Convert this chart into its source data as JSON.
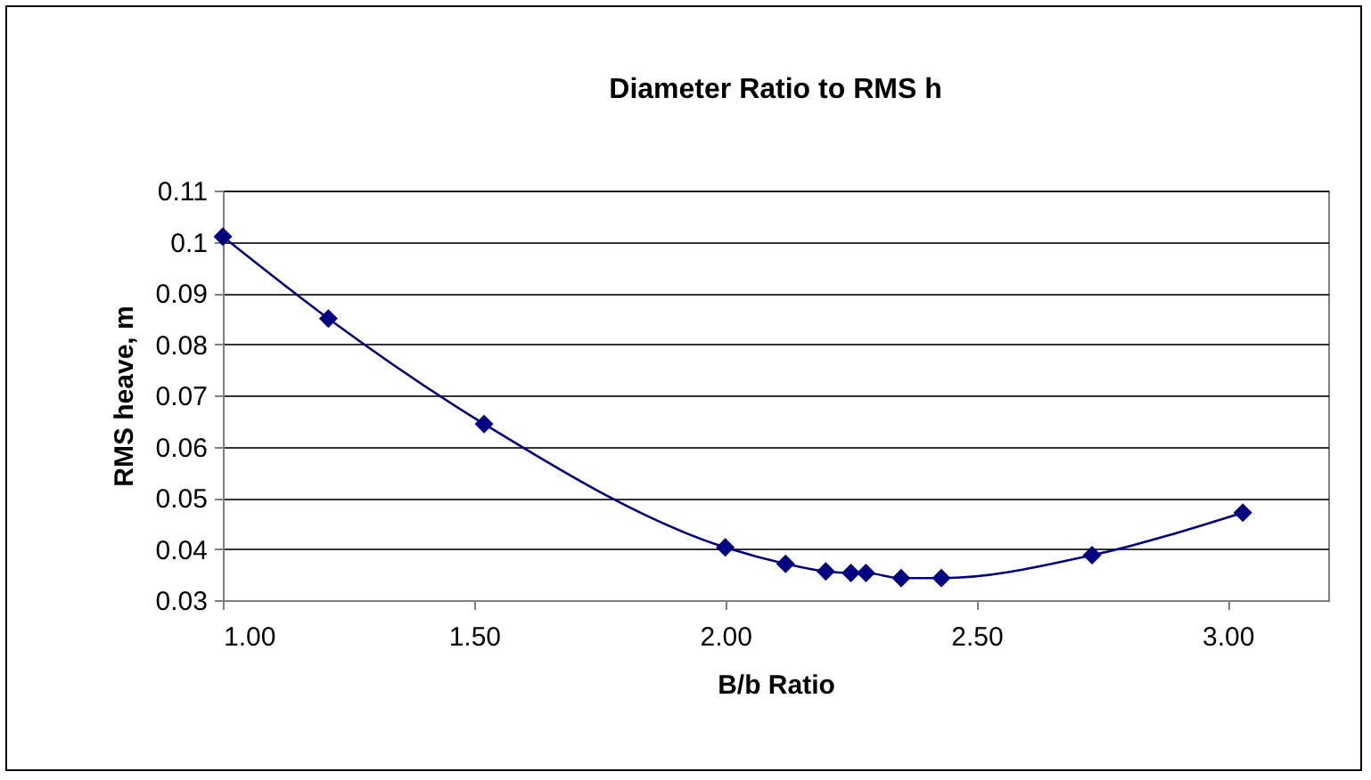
{
  "chart_data": {
    "type": "line",
    "title": "Diameter Ratio to RMS h",
    "xlabel": "B/b Ratio",
    "ylabel": "RMS heave, m",
    "x": [
      1.0,
      1.21,
      1.52,
      2.0,
      2.12,
      2.2,
      2.25,
      2.28,
      2.35,
      2.43,
      2.73,
      3.03
    ],
    "series": [
      {
        "color": "#000080",
        "values": [
          0.101,
          0.085,
          0.0644,
          0.0403,
          0.0371,
          0.0356,
          0.0353,
          0.0353,
          0.0343,
          0.0343,
          0.0388,
          0.0471
        ]
      }
    ],
    "xlim": [
      1.0,
      3.2
    ],
    "xticks": [
      {
        "value": 1.0,
        "label": "1.00"
      },
      {
        "value": 1.5,
        "label": "1.50"
      },
      {
        "value": 2.0,
        "label": "2.00"
      },
      {
        "value": 2.5,
        "label": "2.50"
      },
      {
        "value": 3.0,
        "label": "3.00"
      }
    ],
    "ylim": [
      0.03,
      0.11
    ],
    "yticks": [
      0.03,
      0.04,
      0.05,
      0.06,
      0.07,
      0.08,
      0.09,
      0.1,
      0.11
    ],
    "grid": "y",
    "marker": "diamond",
    "line_style": "solid"
  }
}
